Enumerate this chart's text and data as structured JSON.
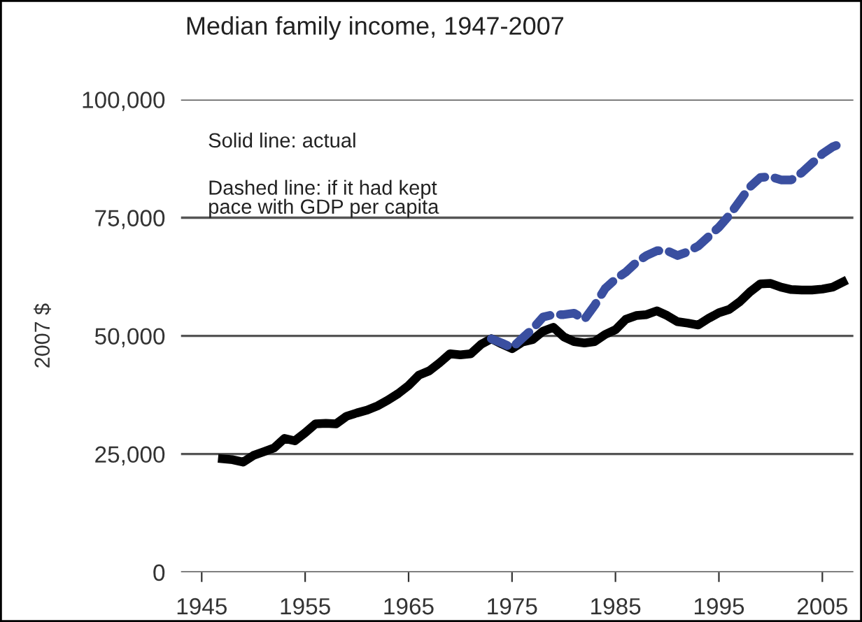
{
  "chart_data": {
    "type": "line",
    "title": "Median family income, 1947-2007",
    "ylabel": "2007 $",
    "annotations": [
      "Solid line: actual",
      "Dashed line: if it had kept\npace with GDP per capita"
    ],
    "series": [
      {
        "color": "#000000",
        "line_style": "solid",
        "x": [
          1947,
          1948,
          1949,
          1950,
          1951,
          1952,
          1953,
          1954,
          1955,
          1956,
          1957,
          1958,
          1959,
          1960,
          1961,
          1962,
          1963,
          1964,
          1965,
          1966,
          1967,
          1968,
          1969,
          1970,
          1971,
          1972,
          1973,
          1974,
          1975,
          1976,
          1977,
          1978,
          1979,
          1980,
          1981,
          1982,
          1983,
          1984,
          1985,
          1986,
          1987,
          1988,
          1989,
          1990,
          1991,
          1992,
          1993,
          1994,
          1995,
          1996,
          1997,
          1998,
          1999,
          2000,
          2001,
          2002,
          2003,
          2004,
          2005,
          2006,
          2007
        ],
        "values": [
          24000,
          23800,
          23300,
          24700,
          25500,
          26300,
          28300,
          27800,
          29500,
          31400,
          31500,
          31400,
          33000,
          33700,
          34300,
          35200,
          36400,
          37800,
          39500,
          41700,
          42600,
          44300,
          46200,
          46000,
          46200,
          48200,
          49400,
          48300,
          47300,
          48700,
          49200,
          51000,
          51800,
          49800,
          48800,
          48500,
          48800,
          50300,
          51300,
          53500,
          54300,
          54500,
          55300,
          54300,
          53000,
          52700,
          52300,
          53700,
          54900,
          55600,
          57200,
          59300,
          61000,
          61100,
          60300,
          59800,
          59700,
          59700,
          59900,
          60300,
          61400
        ]
      },
      {
        "color": "#3a4fa0",
        "line_style": "dashed",
        "x": [
          1973,
          1974,
          1975,
          1976,
          1977,
          1978,
          1979,
          1980,
          1981,
          1982,
          1983,
          1984,
          1985,
          1986,
          1987,
          1988,
          1989,
          1990,
          1991,
          1992,
          1993,
          1994,
          1995,
          1996,
          1997,
          1998,
          1999,
          2000,
          2001,
          2002,
          2003,
          2004,
          2005,
          2006,
          2007
        ],
        "values": [
          49400,
          48500,
          47500,
          49500,
          51500,
          54000,
          54500,
          54500,
          54800,
          53500,
          56500,
          60000,
          62000,
          63500,
          65500,
          67000,
          68000,
          68000,
          67000,
          67800,
          69000,
          71000,
          73000,
          75500,
          78500,
          81500,
          83500,
          83700,
          83000,
          83000,
          84500,
          86500,
          88500,
          90000,
          90800
        ]
      }
    ],
    "xlim": [
      1943,
      2008
    ],
    "xticks": [
      1945,
      1955,
      1965,
      1975,
      1985,
      1995,
      2005
    ],
    "ylim": [
      0,
      100000
    ],
    "yticks": [
      {
        "value": 0,
        "label": "0"
      },
      {
        "value": 25000,
        "label": "25,000"
      },
      {
        "value": 50000,
        "label": "50,000"
      },
      {
        "value": 75000,
        "label": "75,000"
      },
      {
        "value": 100000,
        "label": "100,000"
      }
    ],
    "grid": "y",
    "legend": false
  }
}
